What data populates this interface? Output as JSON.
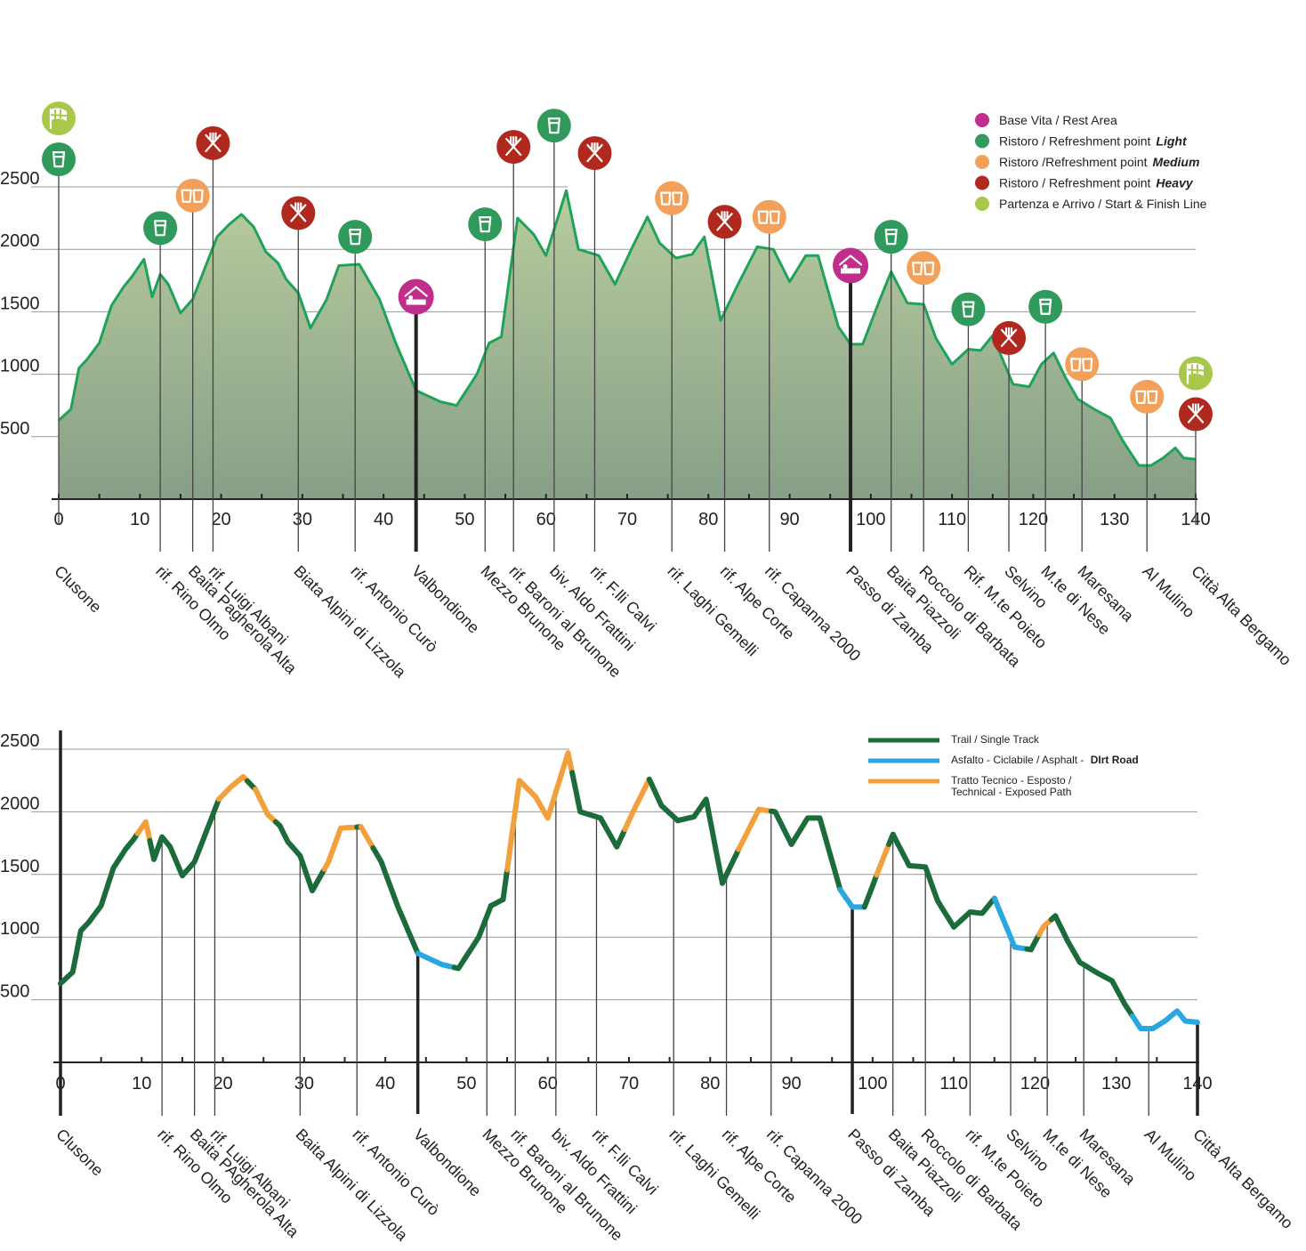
{
  "chart_data": [
    {
      "type": "area",
      "title": "",
      "xlabel": "",
      "ylabel": "",
      "xlim": [
        0,
        140
      ],
      "ylim": [
        0,
        2500
      ],
      "x_ticks": [
        "0",
        "10",
        "20",
        "30",
        "40",
        "50",
        "60",
        "70",
        "80",
        "90",
        "100",
        "110",
        "120",
        "130",
        "140"
      ],
      "y_ticks": [
        "500",
        "1000",
        "1500",
        "2000",
        "2500"
      ],
      "grid": "horizontal",
      "legend_position": "top-right",
      "profile": {
        "x": [
          0,
          1.5,
          2.5,
          3.5,
          5,
          6.5,
          8,
          9,
          10.5,
          11.5,
          12.5,
          13.5,
          15,
          16.5,
          18,
          19.5,
          21,
          22.5,
          24,
          25.5,
          27,
          28,
          29.5,
          31,
          33,
          34.5,
          37,
          39.5,
          41.5,
          44,
          47,
          49,
          51.5,
          53,
          54.5,
          56.5,
          58.5,
          60,
          62.5,
          64,
          66.5,
          68.5,
          70.5,
          72.5,
          74,
          76,
          78,
          79.5,
          81.5,
          83.5,
          86,
          88,
          90,
          92,
          93.5,
          96,
          97.5,
          99,
          101,
          102.5,
          104.5,
          106.5,
          108,
          110,
          112,
          113.5,
          115,
          117.5,
          119.5,
          121,
          122.5,
          124,
          125.5,
          127.5,
          129.5,
          131,
          133,
          134.5,
          136,
          137.5,
          138.5,
          140
        ],
        "y": [
          630,
          720,
          1050,
          1120,
          1250,
          1550,
          1700,
          1780,
          1920,
          1620,
          1800,
          1720,
          1490,
          1600,
          1850,
          2100,
          2200,
          2280,
          2180,
          1980,
          1890,
          1760,
          1650,
          1370,
          1600,
          1870,
          1880,
          1600,
          1250,
          870,
          780,
          750,
          1000,
          1250,
          1300,
          2250,
          2120,
          1950,
          2470,
          2000,
          1950,
          1720,
          2000,
          2260,
          2050,
          1930,
          1960,
          2100,
          1430,
          1700,
          2020,
          2000,
          1740,
          1950,
          1950,
          1380,
          1240,
          1240,
          1580,
          1820,
          1570,
          1560,
          1290,
          1080,
          1200,
          1190,
          1310,
          920,
          900,
          1080,
          1170,
          970,
          800,
          720,
          650,
          470,
          270,
          270,
          330,
          410,
          330,
          320
        ]
      },
      "legend": [
        {
          "icon": "rest-area-icon",
          "color": "#be2e8a",
          "label": "Base Vita / Rest Area",
          "label_em": ""
        },
        {
          "icon": "cup-icon",
          "color": "#2f9a5b",
          "label": "Ristoro / Refreshment point",
          "label_em": "Light"
        },
        {
          "icon": "cups-icon",
          "color": "#f2a05a",
          "label": "Ristoro /Refreshment point",
          "label_em": "Medium"
        },
        {
          "icon": "fork-knife-icon",
          "color": "#b0281e",
          "label": "Ristoro / Refreshment point",
          "label_em": "Heavy"
        },
        {
          "icon": "flag-icon",
          "color": "#a8c84a",
          "label": "Partenza e Arrivo / Start & Finish Line",
          "label_em": ""
        }
      ],
      "colors": {
        "fill_top": "#b3c79a",
        "fill_bottom": "#8ba48a",
        "line": "#1fa25a",
        "light": "#2f9a5b",
        "medium": "#f2a05a",
        "heavy": "#b0281e",
        "rest": "#be2e8a",
        "start": "#a8c84a"
      },
      "locations": [
        {
          "name": "Clusone",
          "km": 0,
          "markers": [
            "light",
            "start"
          ],
          "marker_alt": 2720,
          "rest": false
        },
        {
          "name": "rif. Rino Olmo",
          "km": 12.5,
          "markers": [
            "light"
          ],
          "marker_alt": 2170,
          "rest": false
        },
        {
          "name": "Baita Pagherola Alta",
          "km": 16.5,
          "markers": [
            "medium"
          ],
          "marker_alt": 2430,
          "rest": false
        },
        {
          "name": "rif. Luigi Albani",
          "km": 19,
          "markers": [
            "heavy"
          ],
          "marker_alt": 2850,
          "rest": false
        },
        {
          "name": "Biata Alpini di Lizzola",
          "km": 29.5,
          "markers": [
            "heavy"
          ],
          "marker_alt": 2290,
          "rest": false
        },
        {
          "name": "rif. Antonio Curò",
          "km": 36.5,
          "markers": [
            "light"
          ],
          "marker_alt": 2100,
          "rest": false
        },
        {
          "name": "Valbondione",
          "km": 44,
          "markers": [
            "rest"
          ],
          "marker_alt": 1620,
          "rest": true
        },
        {
          "name": "Mezzo Brunone",
          "km": 52.5,
          "markers": [
            "light"
          ],
          "marker_alt": 2200,
          "rest": false
        },
        {
          "name": "rif. Baroni al Brunone",
          "km": 56,
          "markers": [
            "heavy"
          ],
          "marker_alt": 2820,
          "rest": false
        },
        {
          "name": "biv. Aldo Frattini",
          "km": 61,
          "markers": [
            "light"
          ],
          "marker_alt": 2990,
          "rest": false
        },
        {
          "name": "rif. F.lli Calvi",
          "km": 66,
          "markers": [
            "heavy"
          ],
          "marker_alt": 2770,
          "rest": false
        },
        {
          "name": "rif. Laghi Gemelli",
          "km": 75.5,
          "markers": [
            "medium"
          ],
          "marker_alt": 2410,
          "rest": false
        },
        {
          "name": "rif. Alpe Corte",
          "km": 82,
          "markers": [
            "heavy"
          ],
          "marker_alt": 2220,
          "rest": false
        },
        {
          "name": "rif. Capanna 2000",
          "km": 87.5,
          "markers": [
            "medium"
          ],
          "marker_alt": 2260,
          "rest": false
        },
        {
          "name": "Passo di Zamba",
          "km": 97.5,
          "markers": [
            "rest"
          ],
          "marker_alt": 1870,
          "rest": true
        },
        {
          "name": "Baita Piazzoli",
          "km": 102.5,
          "markers": [
            "light"
          ],
          "marker_alt": 2100,
          "rest": false
        },
        {
          "name": "Roccolo di Barbata",
          "km": 106.5,
          "markers": [
            "medium"
          ],
          "marker_alt": 1850,
          "rest": false
        },
        {
          "name": "Rif. M.te Poieto",
          "km": 112,
          "markers": [
            "light"
          ],
          "marker_alt": 1520,
          "rest": false
        },
        {
          "name": "Selvino",
          "km": 117,
          "markers": [
            "heavy"
          ],
          "marker_alt": 1290,
          "rest": false
        },
        {
          "name": "M.te di Nese",
          "km": 121.5,
          "markers": [
            "light"
          ],
          "marker_alt": 1540,
          "rest": false
        },
        {
          "name": "Maresana",
          "km": 126,
          "markers": [
            "medium"
          ],
          "marker_alt": 1080,
          "rest": false
        },
        {
          "name": "Al Mulino",
          "km": 134,
          "markers": [
            "medium"
          ],
          "marker_alt": 820,
          "rest": false
        },
        {
          "name": "Città Alta Bergamo",
          "km": 140,
          "markers": [
            "heavy",
            "start"
          ],
          "marker_alt": 680,
          "rest": false
        }
      ]
    },
    {
      "type": "line",
      "title": "",
      "xlabel": "",
      "ylabel": "",
      "xlim": [
        0,
        140
      ],
      "ylim": [
        0,
        2500
      ],
      "x_ticks": [
        "0",
        "10",
        "20",
        "30",
        "40",
        "50",
        "60",
        "70",
        "80",
        "90",
        "100",
        "110",
        "120",
        "130",
        "140"
      ],
      "y_ticks": [
        "500",
        "1000",
        "1500",
        "2000",
        "2500"
      ],
      "grid": "horizontal",
      "legend_position": "top-right",
      "legend": [
        {
          "color": "#1c6b3a",
          "label": "Trail / Single Track",
          "label_b": ""
        },
        {
          "color": "#2aa7e0",
          "label": "Asfalto - Ciclabile / Asphalt - ",
          "label_b": "DIrt Road"
        },
        {
          "color": "#f2a03c",
          "label": "Tratto Tecnico - Esposto /",
          "label2": "Technical - Exposed Path"
        }
      ],
      "segments": [
        {
          "from": 0,
          "to": 9.5,
          "surface": "trail"
        },
        {
          "from": 9.5,
          "to": 11,
          "surface": "technical"
        },
        {
          "from": 11,
          "to": 19.5,
          "surface": "trail"
        },
        {
          "from": 19.5,
          "to": 23,
          "surface": "technical"
        },
        {
          "from": 23,
          "to": 24,
          "surface": "trail"
        },
        {
          "from": 24,
          "to": 26.5,
          "surface": "technical"
        },
        {
          "from": 26.5,
          "to": 32.5,
          "surface": "trail"
        },
        {
          "from": 32.5,
          "to": 36.5,
          "surface": "technical"
        },
        {
          "from": 36.5,
          "to": 37,
          "surface": "trail"
        },
        {
          "from": 37,
          "to": 38.5,
          "surface": "technical"
        },
        {
          "from": 38.5,
          "to": 44,
          "surface": "trail"
        },
        {
          "from": 44,
          "to": 48.5,
          "surface": "asphalt"
        },
        {
          "from": 48.5,
          "to": 55,
          "surface": "trail"
        },
        {
          "from": 55,
          "to": 61,
          "surface": "technical"
        },
        {
          "from": 61,
          "to": 63,
          "surface": "technical"
        },
        {
          "from": 63,
          "to": 69.5,
          "surface": "trail"
        },
        {
          "from": 69.5,
          "to": 72.5,
          "surface": "technical"
        },
        {
          "from": 72.5,
          "to": 83.5,
          "surface": "trail"
        },
        {
          "from": 83.5,
          "to": 87.5,
          "surface": "technical"
        },
        {
          "from": 87.5,
          "to": 96,
          "surface": "trail"
        },
        {
          "from": 96,
          "to": 99,
          "surface": "asphalt"
        },
        {
          "from": 99,
          "to": 100.5,
          "surface": "trail"
        },
        {
          "from": 100.5,
          "to": 102,
          "surface": "technical"
        },
        {
          "from": 102,
          "to": 115,
          "surface": "trail"
        },
        {
          "from": 115,
          "to": 119,
          "surface": "asphalt"
        },
        {
          "from": 119,
          "to": 120.5,
          "surface": "trail"
        },
        {
          "from": 120.5,
          "to": 122,
          "surface": "technical"
        },
        {
          "from": 122,
          "to": 132,
          "surface": "trail"
        },
        {
          "from": 132,
          "to": 140,
          "surface": "asphalt"
        }
      ],
      "locations": [
        {
          "name": "Clusone",
          "km": 0,
          "major": true
        },
        {
          "name": "rif. Rino Olmo",
          "km": 12.5,
          "major": false
        },
        {
          "name": "Baita PAgherola Alta",
          "km": 16.5,
          "major": false
        },
        {
          "name": "rif. Luigi Albani",
          "km": 19,
          "major": false
        },
        {
          "name": "Baita Alpini di Lizzola",
          "km": 29.5,
          "major": false
        },
        {
          "name": "rif. Antonio Curò",
          "km": 36.5,
          "major": false
        },
        {
          "name": "Valbondione",
          "km": 44,
          "major": true
        },
        {
          "name": "Mezzo Brunone",
          "km": 52.5,
          "major": false
        },
        {
          "name": "rif. Baroni al Brunone",
          "km": 56,
          "major": false
        },
        {
          "name": "biv. Aldo Frattini",
          "km": 61,
          "major": false
        },
        {
          "name": "rif. F.lli Calvi",
          "km": 66,
          "major": false
        },
        {
          "name": "rif. Laghi Gemelli",
          "km": 75.5,
          "major": false
        },
        {
          "name": "rif. Alpe Corte",
          "km": 82,
          "major": false
        },
        {
          "name": "rif. Capanna 2000",
          "km": 87.5,
          "major": false
        },
        {
          "name": "Passo di Zamba",
          "km": 97.5,
          "major": true
        },
        {
          "name": "Baita Piazzoli",
          "km": 102.5,
          "major": false
        },
        {
          "name": "Roccolo di Barbata",
          "km": 106.5,
          "major": false
        },
        {
          "name": "rif. M.te Poieto",
          "km": 112,
          "major": false
        },
        {
          "name": "Selvino",
          "km": 117,
          "major": false
        },
        {
          "name": "M.te di Nese",
          "km": 121.5,
          "major": false
        },
        {
          "name": "Maresana",
          "km": 126,
          "major": false
        },
        {
          "name": "Al Mulino",
          "km": 134,
          "major": false
        },
        {
          "name": "Città Alta Bergamo",
          "km": 140,
          "major": true
        }
      ]
    }
  ]
}
